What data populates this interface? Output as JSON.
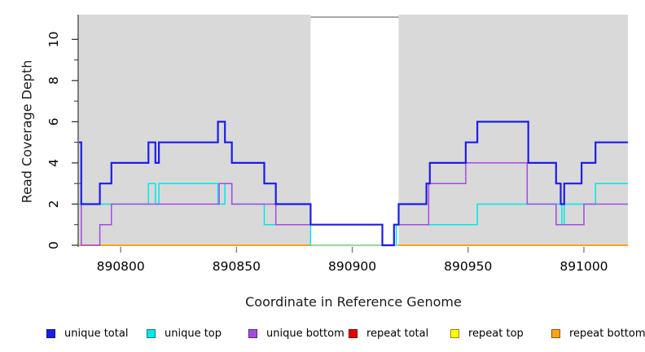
{
  "chart_data": {
    "type": "line",
    "subtype": "step",
    "title": "",
    "xlabel": "Coordinate in Reference Genome",
    "ylabel": "Read Coverage Depth",
    "xlim": [
      890782,
      891019
    ],
    "ylim": [
      0,
      11.2
    ],
    "x_ticks": [
      890800,
      890850,
      890900,
      890950,
      891000
    ],
    "y_ticks_major": [
      0,
      2,
      4,
      6,
      8,
      10
    ],
    "y_ticks_minor": [
      1,
      3,
      5,
      7,
      9
    ],
    "grid": false,
    "legend_position": "bottom",
    "plot_background": "#d9d9d9",
    "uncovered_region": {
      "x_start": 890882,
      "x_end": 890920,
      "fill": "#ffffff",
      "top_line_color": "#8c8c8c",
      "zero_line_color": "#9fd89f"
    },
    "series": [
      {
        "name": "repeat total",
        "color": "#e60000",
        "width": 1.5,
        "steps": [
          [
            890782,
            0
          ]
        ]
      },
      {
        "name": "repeat top",
        "color": "#ffff00",
        "width": 1.5,
        "steps": [
          [
            890782,
            0
          ]
        ]
      },
      {
        "name": "repeat bottom",
        "color": "#ffa217",
        "width": 2,
        "steps": [
          [
            890782,
            0
          ]
        ]
      },
      {
        "name": "unique top",
        "color": "#00e8e8",
        "width": 1.5,
        "steps": [
          [
            890782,
            2
          ],
          [
            890812,
            3
          ],
          [
            890815,
            2
          ],
          [
            890816.5,
            3
          ],
          [
            890842,
            2
          ],
          [
            890845,
            3
          ],
          [
            890848,
            2
          ],
          [
            890862,
            1
          ],
          [
            890882,
            0
          ],
          [
            890919,
            1
          ],
          [
            890954,
            2
          ],
          [
            890990.5,
            1
          ],
          [
            890991.5,
            2
          ],
          [
            891005,
            3
          ]
        ]
      },
      {
        "name": "unique bottom",
        "color": "#a44ae0",
        "width": 1.5,
        "steps": [
          [
            890782,
            3
          ],
          [
            890783,
            0
          ],
          [
            890791,
            1
          ],
          [
            890796,
            2
          ],
          [
            890842.5,
            3
          ],
          [
            890848,
            2
          ],
          [
            890867,
            1
          ],
          [
            890913,
            0
          ],
          [
            890918,
            1
          ],
          [
            890933,
            3
          ],
          [
            890949,
            4
          ],
          [
            890975.5,
            2
          ],
          [
            890988,
            1
          ],
          [
            891000,
            2
          ]
        ]
      },
      {
        "name": "unique total",
        "color": "#1c1cec",
        "width": 2.2,
        "steps": [
          [
            890782,
            5
          ],
          [
            890783,
            2
          ],
          [
            890791,
            3
          ],
          [
            890796,
            4
          ],
          [
            890812,
            5
          ],
          [
            890815,
            4
          ],
          [
            890816.5,
            5
          ],
          [
            890842,
            6
          ],
          [
            890845,
            5
          ],
          [
            890848,
            4
          ],
          [
            890862,
            3
          ],
          [
            890867,
            2
          ],
          [
            890882,
            1
          ],
          [
            890913,
            0
          ],
          [
            890918,
            1
          ],
          [
            890920,
            2
          ],
          [
            890932,
            3
          ],
          [
            890933.5,
            4
          ],
          [
            890949,
            5
          ],
          [
            890954,
            6
          ],
          [
            890976,
            4
          ],
          [
            890988,
            3
          ],
          [
            890990,
            2
          ],
          [
            890991.5,
            3
          ],
          [
            890999,
            4
          ],
          [
            891005,
            5
          ]
        ]
      }
    ],
    "legend_order": [
      "unique total",
      "unique top",
      "unique bottom",
      "repeat total",
      "repeat top",
      "repeat bottom"
    ],
    "axis_colors": {
      "y_axis": "#2a2a2a",
      "x_tick": "#808080",
      "tick_label": "#000000"
    }
  }
}
